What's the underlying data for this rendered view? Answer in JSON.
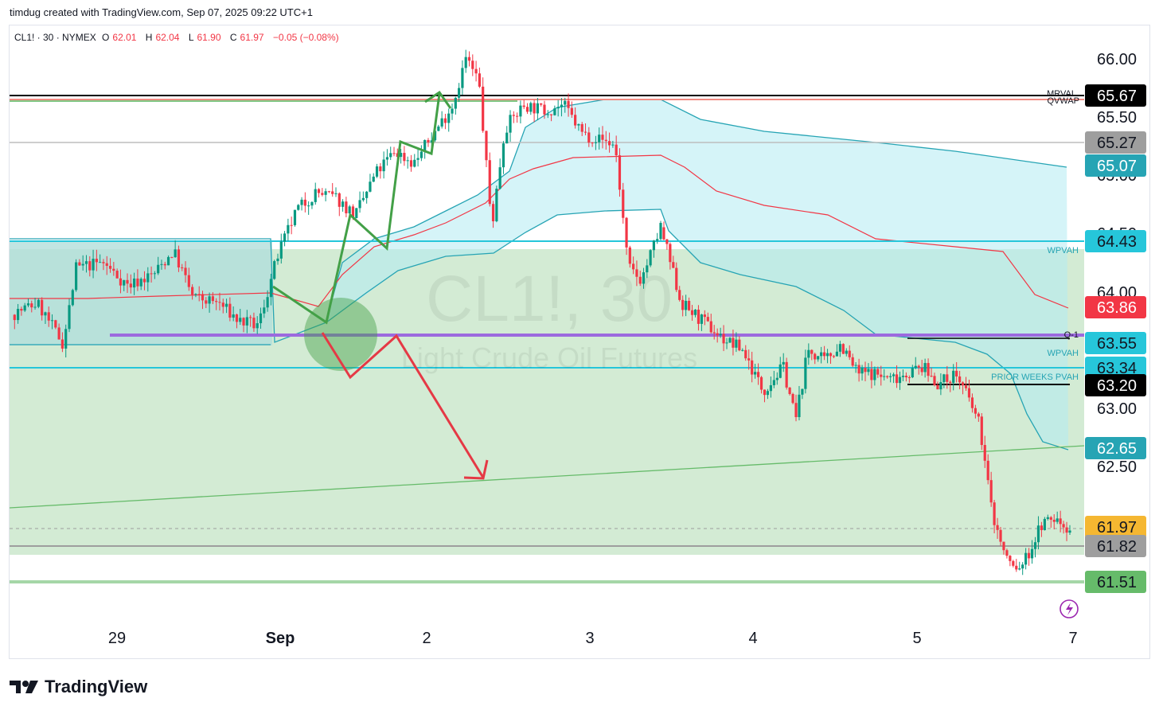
{
  "header": {
    "credit": "timdug created with TradingView.com, Sep 07, 2025 09:22 UTC+1"
  },
  "legend": {
    "symbol": "CL1! · 30 · NYMEX",
    "open_label": "O",
    "open": "62.01",
    "high_label": "H",
    "high": "62.04",
    "low_label": "L",
    "low": "61.90",
    "close_label": "C",
    "close": "61.97",
    "change": "−0.05 (−0.08%)"
  },
  "watermark": {
    "title": "CL1!, 30",
    "subtitle": "Light Crude Oil Futures"
  },
  "brand": {
    "name": "TradingView"
  },
  "chart_data": {
    "type": "candlestick",
    "symbol": "CL1!",
    "interval": "30",
    "exchange": "NYMEX",
    "ylim": [
      61.2,
      66.35
    ],
    "y_ticks": [
      "66.00",
      "65.50",
      "65.00",
      "64.50",
      "64.00",
      "63.00",
      "62.50"
    ],
    "x_ticks": [
      "29",
      "Sep",
      "2",
      "3",
      "4",
      "5",
      "7"
    ],
    "price_path": [
      {
        "x": 0.0,
        "y": 63.8
      },
      {
        "x": 0.04,
        "y": 63.9
      },
      {
        "x": 0.08,
        "y": 63.55
      },
      {
        "x": 0.1,
        "y": 64.2
      },
      {
        "x": 0.14,
        "y": 64.25
      },
      {
        "x": 0.18,
        "y": 64.05
      },
      {
        "x": 0.22,
        "y": 64.15
      },
      {
        "x": 0.25,
        "y": 64.35
      },
      {
        "x": 0.28,
        "y": 63.95
      },
      {
        "x": 0.32,
        "y": 63.9
      },
      {
        "x": 0.35,
        "y": 63.75
      },
      {
        "x": 0.38,
        "y": 63.7
      },
      {
        "x": 0.41,
        "y": 64.3
      },
      {
        "x": 0.44,
        "y": 64.7
      },
      {
        "x": 0.47,
        "y": 64.85
      },
      {
        "x": 0.5,
        "y": 64.8
      },
      {
        "x": 0.53,
        "y": 64.65
      },
      {
        "x": 0.56,
        "y": 65.0
      },
      {
        "x": 0.59,
        "y": 65.2
      },
      {
        "x": 0.62,
        "y": 65.1
      },
      {
        "x": 0.65,
        "y": 65.35
      },
      {
        "x": 0.68,
        "y": 65.6
      },
      {
        "x": 0.7,
        "y": 66.0
      },
      {
        "x": 0.72,
        "y": 65.8
      },
      {
        "x": 0.74,
        "y": 64.55
      },
      {
        "x": 0.76,
        "y": 65.4
      },
      {
        "x": 0.79,
        "y": 65.6
      },
      {
        "x": 0.82,
        "y": 65.55
      },
      {
        "x": 0.85,
        "y": 65.6
      },
      {
        "x": 0.88,
        "y": 65.35
      },
      {
        "x": 0.91,
        "y": 65.3
      },
      {
        "x": 0.93,
        "y": 65.25
      },
      {
        "x": 0.95,
        "y": 64.2
      },
      {
        "x": 0.97,
        "y": 64.1
      },
      {
        "x": 1.0,
        "y": 64.55
      }
    ],
    "price_path_2": [
      {
        "x": 0.0,
        "y": 64.55
      },
      {
        "x": 0.05,
        "y": 63.9
      },
      {
        "x": 0.1,
        "y": 63.75
      },
      {
        "x": 0.15,
        "y": 63.6
      },
      {
        "x": 0.2,
        "y": 63.5
      },
      {
        "x": 0.25,
        "y": 63.15
      },
      {
        "x": 0.3,
        "y": 63.35
      },
      {
        "x": 0.33,
        "y": 62.9
      },
      {
        "x": 0.36,
        "y": 63.5
      },
      {
        "x": 0.4,
        "y": 63.4
      },
      {
        "x": 0.44,
        "y": 63.55
      },
      {
        "x": 0.48,
        "y": 63.3
      },
      {
        "x": 0.52,
        "y": 63.3
      },
      {
        "x": 0.56,
        "y": 63.25
      },
      {
        "x": 0.6,
        "y": 63.3
      },
      {
        "x": 0.64,
        "y": 63.35
      },
      {
        "x": 0.68,
        "y": 63.2
      },
      {
        "x": 0.72,
        "y": 63.3
      },
      {
        "x": 0.75,
        "y": 63.1
      },
      {
        "x": 0.78,
        "y": 62.85
      },
      {
        "x": 0.81,
        "y": 62.1
      },
      {
        "x": 0.84,
        "y": 61.75
      },
      {
        "x": 0.87,
        "y": 61.6
      },
      {
        "x": 0.9,
        "y": 61.75
      },
      {
        "x": 0.93,
        "y": 62.0
      },
      {
        "x": 0.96,
        "y": 62.05
      },
      {
        "x": 1.0,
        "y": 61.97
      }
    ],
    "horizontal_levels": [
      {
        "price": 65.67,
        "color": "#000000",
        "label": "MRVAL"
      },
      {
        "price": 65.64,
        "color": "#f23645",
        "label": "QVWAP"
      },
      {
        "price": 65.27,
        "color": "#bdbdbd"
      },
      {
        "price": 64.43,
        "color": "#26c6da",
        "label": "WPVAH"
      },
      {
        "price": 63.68,
        "color": "#9c6ade",
        "label": "Q-1"
      },
      {
        "price": 63.34,
        "color": "#26c6da",
        "label": "WPVAH"
      },
      {
        "price": 63.2,
        "color": "#000000",
        "label": "PRIOR WEEKS PVAH"
      },
      {
        "price": 61.82,
        "color": "#9e9e9e"
      },
      {
        "price": 61.51,
        "color": "#a5d6a7"
      }
    ],
    "price_labels": [
      {
        "text": "65.67",
        "bg": "#000000",
        "fg": "#ffffff"
      },
      {
        "text": "65.27",
        "bg": "#9e9e9e",
        "fg": "#131722"
      },
      {
        "text": "65.07",
        "bg": "#26a4b4",
        "fg": "#ffffff"
      },
      {
        "text": "64.43",
        "bg": "#26c6da",
        "fg": "#131722"
      },
      {
        "text": "63.86",
        "bg": "#f23645",
        "fg": "#ffffff"
      },
      {
        "text": "63.55",
        "bg": "#26c6da",
        "fg": "#131722"
      },
      {
        "text": "63.34",
        "bg": "#26c6da",
        "fg": "#131722"
      },
      {
        "text": "63.20",
        "bg": "#000000",
        "fg": "#ffffff"
      },
      {
        "text": "62.65",
        "bg": "#26a4b4",
        "fg": "#ffffff"
      },
      {
        "text": "61.97",
        "bg": "#f5b731",
        "fg": "#131722"
      },
      {
        "text": "61.82",
        "bg": "#9e9e9e",
        "fg": "#131722"
      },
      {
        "text": "61.51",
        "bg": "#66bb6a",
        "fg": "#131722"
      }
    ],
    "level_tags": [
      "MRVAL",
      "QVWAP",
      "WPVAH",
      "Q-1",
      "WPVAH",
      "PRIOR WEEKS PVAH"
    ],
    "colors": {
      "up": "#089981",
      "down": "#f23645",
      "arrow_up": "#43a047",
      "arrow_down": "#e53945",
      "band_fill": "#b2ebf2",
      "zone_fill": "#c8e6c9"
    }
  }
}
